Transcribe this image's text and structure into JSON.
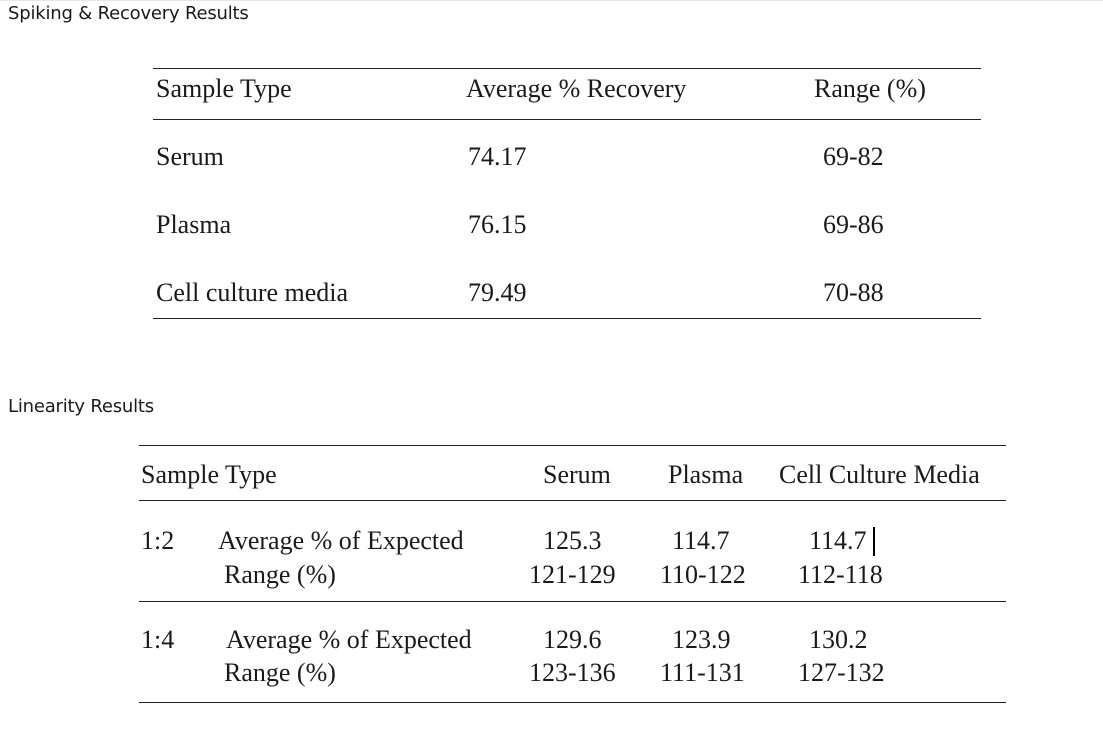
{
  "spiking": {
    "heading": "Spiking & Recovery Results",
    "headers": [
      "Sample Type",
      "Average % Recovery",
      "Range (%)"
    ],
    "rows": [
      {
        "sample": "Serum",
        "average": "74.17",
        "range": "69-82"
      },
      {
        "sample": "Plasma",
        "average": "76.15",
        "range": "69-86"
      },
      {
        "sample": "Cell culture media",
        "average": "79.49",
        "range": "70-88"
      }
    ]
  },
  "linearity": {
    "heading": "Linearity Results",
    "headers": [
      "Sample Type",
      "Serum",
      "Plasma",
      "Cell Culture Media"
    ],
    "groups": [
      {
        "dilution": "1:2",
        "average_label": "Average % of Expected",
        "range_label": "Range (%)",
        "average": {
          "serum": "125.3",
          "plasma": "114.7",
          "ccm": "114.7"
        },
        "range": {
          "serum": "121-129",
          "plasma": "110-122",
          "ccm": "112-118"
        }
      },
      {
        "dilution": "1:4",
        "average_label": "Average % of Expected",
        "range_label": "Range (%)",
        "average": {
          "serum": "129.6",
          "plasma": "123.9",
          "ccm": "130.2"
        },
        "range": {
          "serum": "123-136",
          "plasma": "111-131",
          "ccm": "127-132"
        }
      }
    ]
  }
}
